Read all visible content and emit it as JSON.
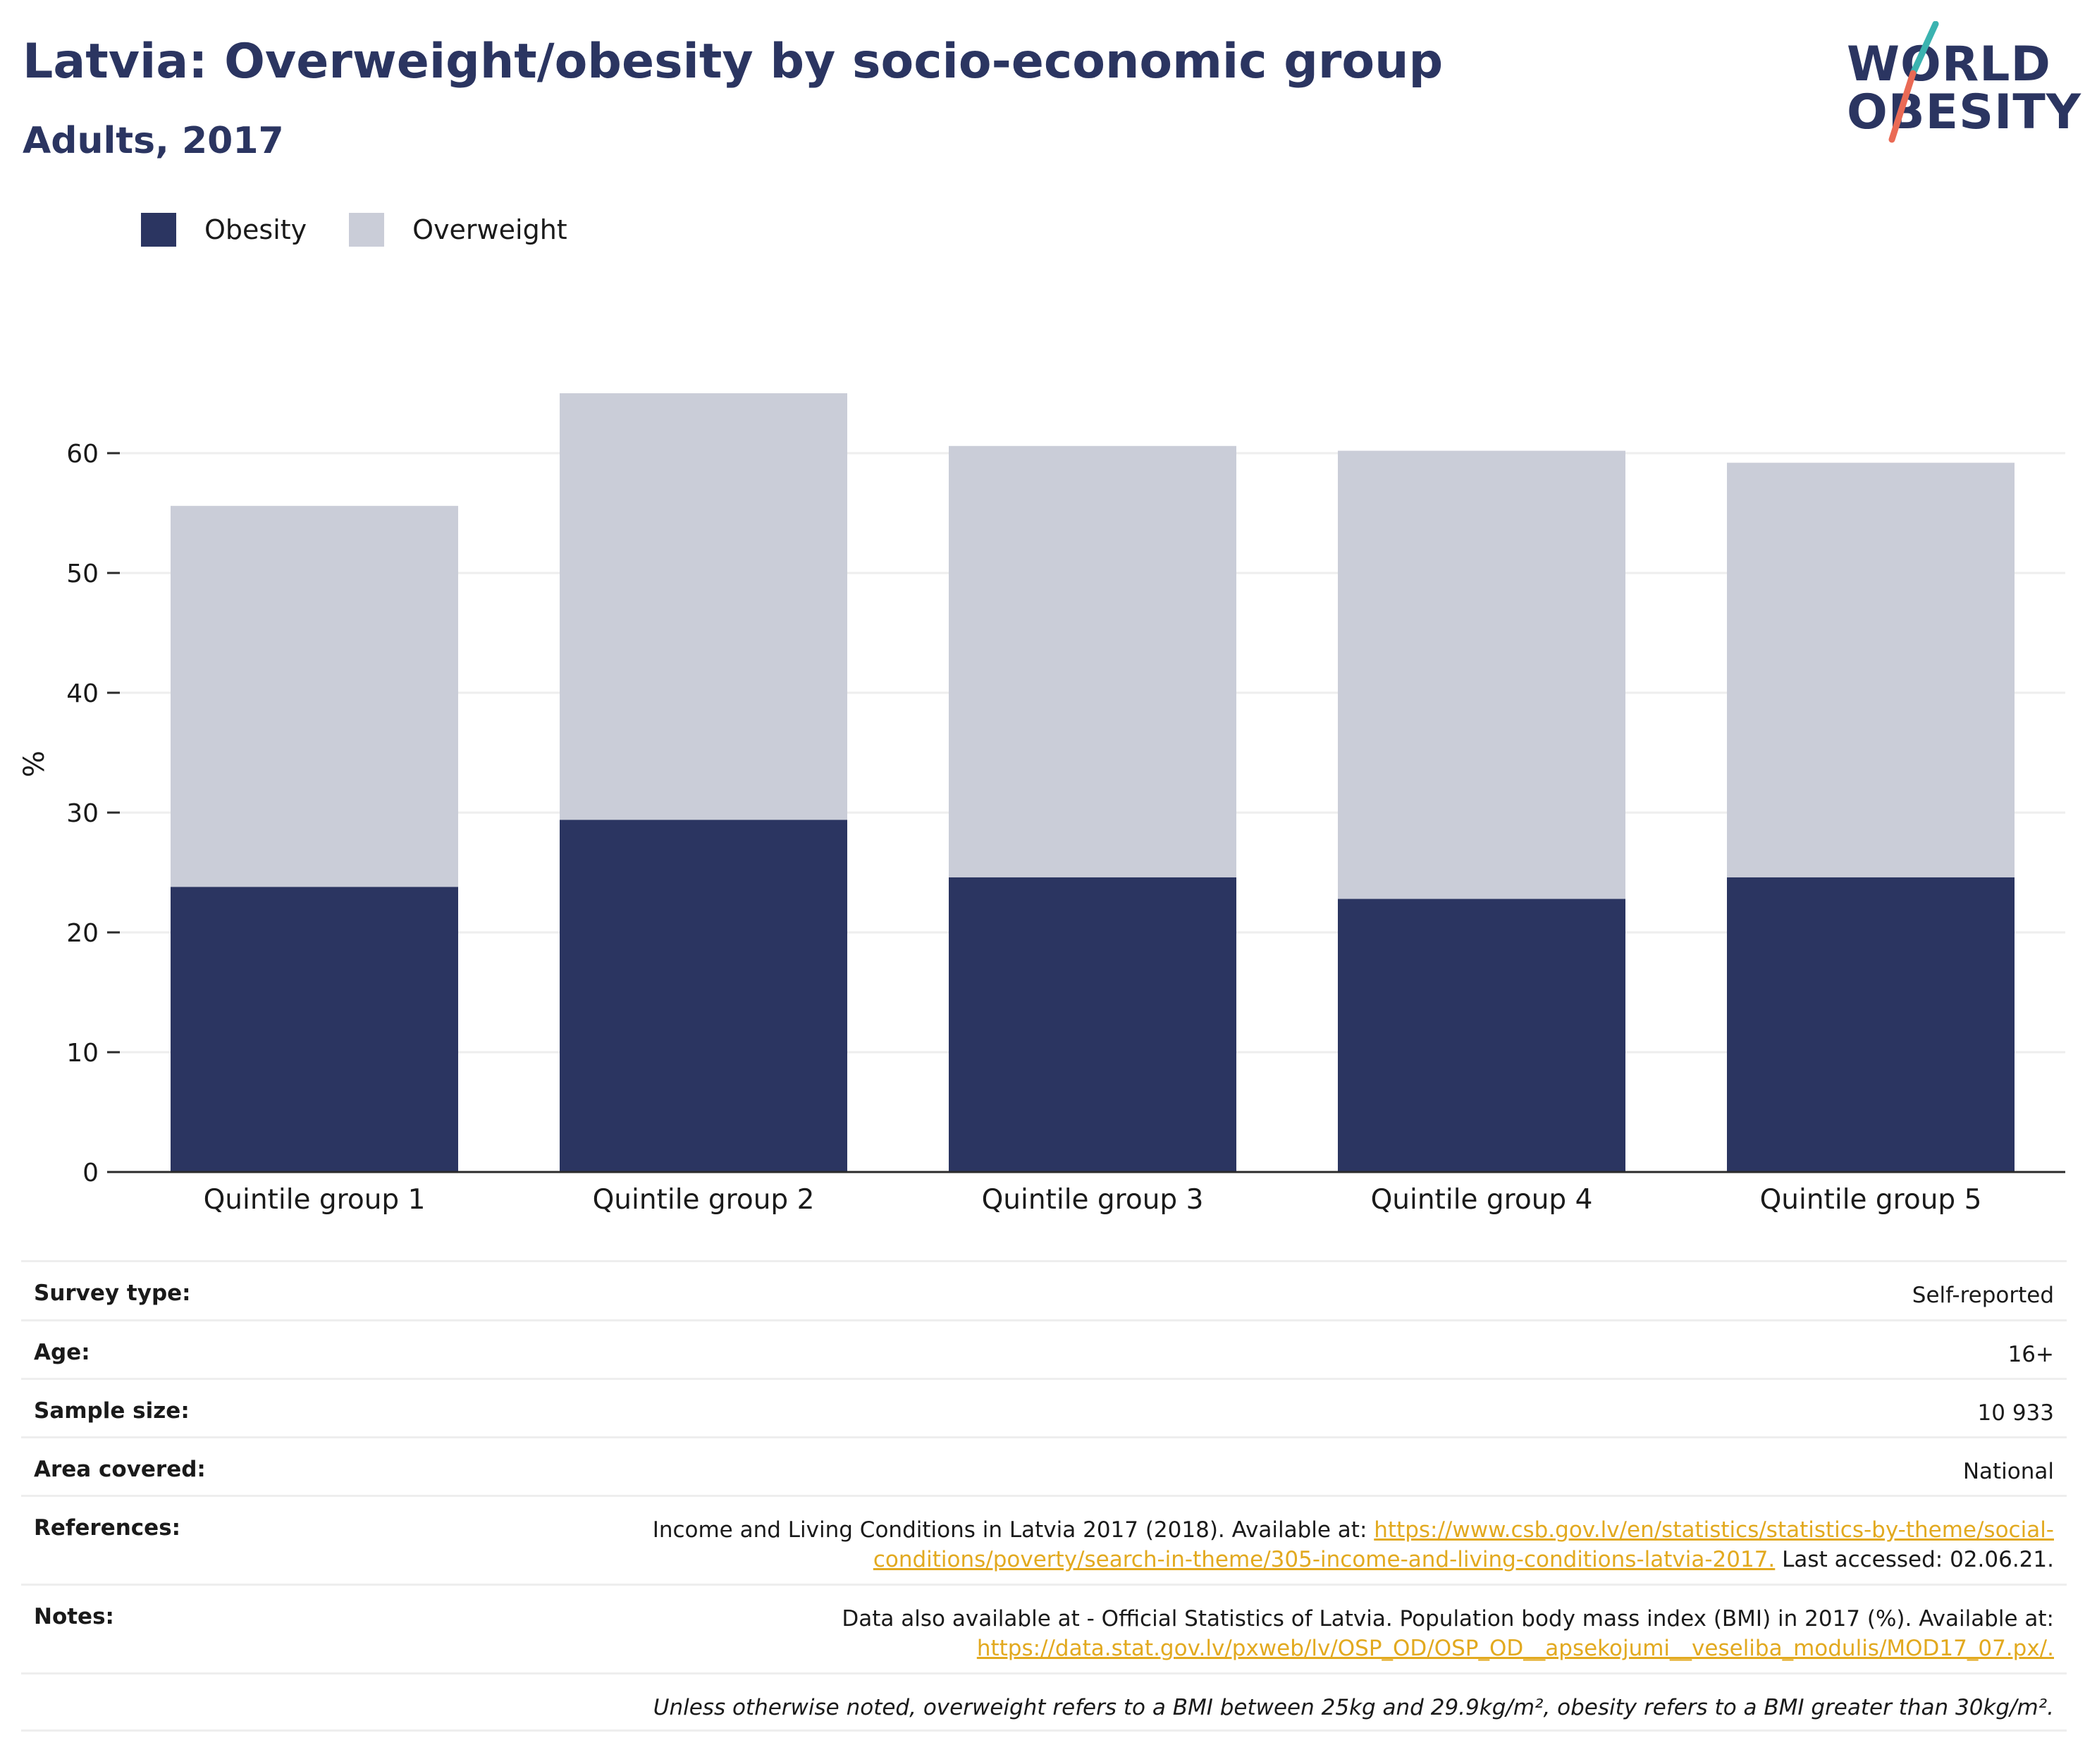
{
  "header": {
    "title": "Latvia: Overweight/obesity by socio-economic group",
    "subtitle": "Adults, 2017"
  },
  "logo": {
    "line1": "WORLD",
    "line2": "OBESITY",
    "colors": {
      "slash_teal": "#3bb3b0",
      "slash_coral": "#ea6a55"
    }
  },
  "colors": {
    "obesity": "#2b3561",
    "overweight": "#cacdd8",
    "text": "#1a1a1a",
    "link": "#e2a91f",
    "grid": "#eeeeee"
  },
  "chart_data": {
    "type": "bar",
    "stacked": true,
    "title": "Latvia: Overweight/obesity by socio-economic group",
    "subtitle": "Adults, 2017",
    "xlabel": "",
    "ylabel": "%",
    "ylim": [
      0,
      65
    ],
    "yticks": [
      0,
      10,
      20,
      30,
      40,
      50,
      60
    ],
    "grid": true,
    "legend_position": "top-left",
    "categories": [
      "Quintile group 1",
      "Quintile group 2",
      "Quintile group 3",
      "Quintile group 4",
      "Quintile group 5"
    ],
    "series": [
      {
        "name": "Obesity",
        "values": [
          23.8,
          29.4,
          24.6,
          22.8,
          24.6
        ]
      },
      {
        "name": "Overweight",
        "values": [
          31.8,
          35.6,
          36.0,
          37.4,
          34.6
        ]
      }
    ]
  },
  "info": {
    "survey_type": {
      "label": "Survey type:",
      "value": "Self-reported"
    },
    "age": {
      "label": "Age:",
      "value": "16+"
    },
    "sample_size": {
      "label": "Sample size:",
      "value": "10 933"
    },
    "area": {
      "label": "Area covered:",
      "value": "National"
    },
    "references": {
      "label": "References:",
      "text_before": "Income and Living Conditions in Latvia 2017 (2018). Available at: ",
      "link_line1": "https://www.csb.gov.lv/en/statistics/statistics-by-theme/social-",
      "link_line2": "conditions/poverty/search-in-theme/305-income-and-living-conditions-latvia-2017.",
      "text_after": " Last accessed: 02.06.21."
    },
    "notes": {
      "label": "Notes:",
      "text": "Data also available at - Official Statistics of Latvia. Population body mass index (BMI) in 2017 (%). Available at:",
      "link": "https://data.stat.gov.lv/pxweb/lv/OSP_OD/OSP_OD__apsekojumi__veseliba_modulis/MOD17_07.px/."
    },
    "footnote": "Unless otherwise noted, overweight refers to a BMI between 25kg and 29.9kg/m², obesity refers to a BMI greater than 30kg/m²."
  }
}
